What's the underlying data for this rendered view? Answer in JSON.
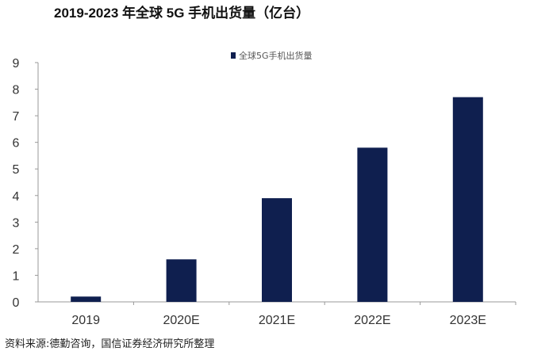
{
  "title": "2019-2023 年全球 5G 手机出货量（亿台）",
  "source": "资料来源:德勤咨询，国信证券经济研究所整理",
  "chart_data": {
    "type": "bar",
    "title": "2019-2023 年全球 5G 手机出货量（亿台）",
    "categories": [
      "2019",
      "2020E",
      "2021E",
      "2022E",
      "2023E"
    ],
    "series": [
      {
        "name": "全球5G手机出货量",
        "values": [
          0.2,
          1.6,
          3.9,
          5.8,
          7.7
        ],
        "color": "#0f1f4f"
      }
    ],
    "ylim": [
      0,
      9
    ],
    "yticks": [
      0,
      1,
      2,
      3,
      4,
      5,
      6,
      7,
      8,
      9
    ],
    "xlabel": "",
    "ylabel": "",
    "grid": false,
    "legend": "top-center"
  }
}
